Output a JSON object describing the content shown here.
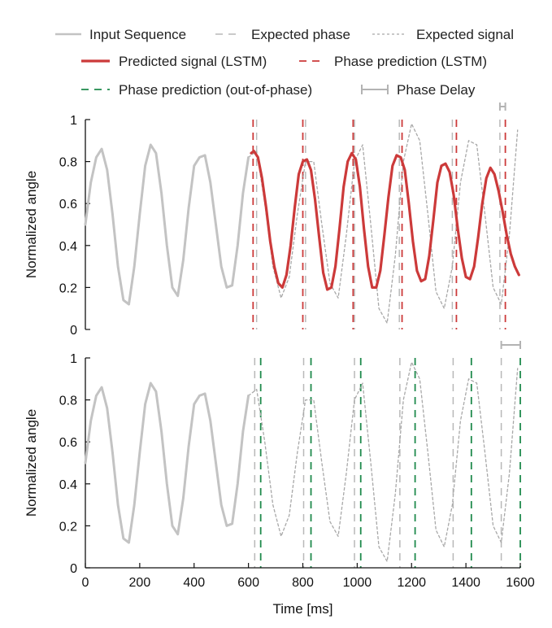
{
  "colors": {
    "input": "#c3c3c3",
    "expected_phase": "#b8b8b8",
    "expected_signal": "#a8a8a8",
    "predicted": "#cc3a3a",
    "phase_lstm": "#cc3a3a",
    "phase_oop": "#1f8a4c",
    "delay": "#b3b3b3",
    "axis": "#111111"
  },
  "legend": [
    {
      "label": "Input Sequence",
      "style": "input"
    },
    {
      "label": "Expected phase",
      "style": "expected_phase"
    },
    {
      "label": "Expected signal",
      "style": "expected_signal"
    },
    {
      "label": "Predicted signal (LSTM)",
      "style": "predicted"
    },
    {
      "label": "Phase prediction (LSTM)",
      "style": "phase_lstm"
    },
    {
      "label": "Phase prediction (out-of-phase)",
      "style": "phase_oop"
    },
    {
      "label": "Phase Delay",
      "style": "delay"
    }
  ],
  "chart_data": [
    {
      "type": "line",
      "panel": "top",
      "ylabel": "Normalized angle",
      "xlabel": "",
      "xlim": [
        0,
        1600
      ],
      "ylim": [
        0,
        1
      ],
      "y_ticks": [
        "0",
        "0.2",
        "0.4",
        "0.6",
        "0.8",
        "1"
      ],
      "x_ticks": [],
      "series": [
        {
          "name": "Input Sequence",
          "x": [
            0,
            20,
            40,
            60,
            80,
            100,
            120,
            140,
            160,
            180,
            200,
            220,
            240,
            260,
            280,
            300,
            320,
            340,
            360,
            380,
            400,
            420,
            440,
            460,
            480,
            500,
            520,
            540,
            560,
            580,
            600
          ],
          "y": [
            0.5,
            0.7,
            0.82,
            0.86,
            0.76,
            0.55,
            0.3,
            0.14,
            0.12,
            0.3,
            0.55,
            0.78,
            0.88,
            0.84,
            0.65,
            0.4,
            0.2,
            0.16,
            0.33,
            0.58,
            0.78,
            0.82,
            0.83,
            0.7,
            0.5,
            0.3,
            0.2,
            0.21,
            0.4,
            0.65,
            0.82
          ]
        },
        {
          "name": "Expected signal",
          "x": [
            600,
            630,
            660,
            690,
            720,
            750,
            780,
            810,
            840,
            870,
            900,
            930,
            960,
            990,
            1020,
            1050,
            1080,
            1110,
            1140,
            1170,
            1200,
            1230,
            1260,
            1290,
            1320,
            1350,
            1380,
            1410,
            1440,
            1470,
            1500,
            1530,
            1560,
            1590
          ],
          "y": [
            0.82,
            0.85,
            0.6,
            0.3,
            0.15,
            0.25,
            0.55,
            0.8,
            0.8,
            0.5,
            0.22,
            0.15,
            0.45,
            0.8,
            0.88,
            0.5,
            0.1,
            0.03,
            0.35,
            0.8,
            0.98,
            0.9,
            0.55,
            0.18,
            0.1,
            0.3,
            0.7,
            0.9,
            0.88,
            0.55,
            0.2,
            0.12,
            0.45,
            0.95
          ]
        },
        {
          "name": "Predicted signal (LSTM)",
          "x": [
            610,
            620,
            635,
            650,
            665,
            680,
            695,
            710,
            725,
            740,
            755,
            770,
            785,
            800,
            815,
            830,
            845,
            860,
            875,
            890,
            905,
            920,
            935,
            950,
            965,
            980,
            995,
            1010,
            1025,
            1040,
            1055,
            1070,
            1085,
            1100,
            1115,
            1130,
            1145,
            1160,
            1175,
            1190,
            1205,
            1220,
            1235,
            1250,
            1265,
            1280,
            1295,
            1310,
            1325,
            1340,
            1355,
            1370,
            1385,
            1400,
            1415,
            1430,
            1445,
            1460,
            1475,
            1490,
            1505,
            1520,
            1535,
            1550,
            1565,
            1580,
            1595
          ],
          "y": [
            0.84,
            0.85,
            0.82,
            0.72,
            0.58,
            0.42,
            0.3,
            0.22,
            0.2,
            0.26,
            0.4,
            0.58,
            0.74,
            0.8,
            0.81,
            0.76,
            0.62,
            0.44,
            0.27,
            0.19,
            0.2,
            0.3,
            0.48,
            0.68,
            0.8,
            0.84,
            0.81,
            0.68,
            0.48,
            0.3,
            0.2,
            0.2,
            0.28,
            0.45,
            0.63,
            0.78,
            0.83,
            0.82,
            0.76,
            0.6,
            0.42,
            0.28,
            0.23,
            0.24,
            0.35,
            0.52,
            0.7,
            0.78,
            0.79,
            0.75,
            0.64,
            0.48,
            0.34,
            0.25,
            0.24,
            0.3,
            0.44,
            0.6,
            0.72,
            0.77,
            0.74,
            0.66,
            0.56,
            0.45,
            0.36,
            0.3,
            0.26
          ]
        },
        {
          "name": "Phase prediction (LSTM)",
          "x": [
            617,
            800,
            985,
            1165,
            1365,
            1545
          ],
          "style": "vertical-lines"
        },
        {
          "name": "Expected phase",
          "x": [
            630,
            810,
            990,
            1155,
            1350,
            1525
          ],
          "style": "vertical-lines"
        }
      ],
      "annotation": {
        "name": "Phase Delay",
        "x": [
          1525,
          1545
        ]
      }
    },
    {
      "type": "line",
      "panel": "bottom",
      "ylabel": "Normalized angle",
      "xlabel": "Time [ms]",
      "xlim": [
        0,
        1600
      ],
      "ylim": [
        0,
        1
      ],
      "y_ticks": [
        "0",
        "0.2",
        "0.4",
        "0.6",
        "0.8",
        "1"
      ],
      "x_ticks": [
        "0",
        "200",
        "400",
        "600",
        "800",
        "1000",
        "1200",
        "1400",
        "1600"
      ],
      "series": [
        {
          "name": "Input Sequence",
          "x": [
            0,
            20,
            40,
            60,
            80,
            100,
            120,
            140,
            160,
            180,
            200,
            220,
            240,
            260,
            280,
            300,
            320,
            340,
            360,
            380,
            400,
            420,
            440,
            460,
            480,
            500,
            520,
            540,
            560,
            580,
            600
          ],
          "y": [
            0.5,
            0.7,
            0.82,
            0.86,
            0.76,
            0.55,
            0.3,
            0.14,
            0.12,
            0.3,
            0.55,
            0.78,
            0.88,
            0.84,
            0.65,
            0.4,
            0.2,
            0.16,
            0.33,
            0.58,
            0.78,
            0.82,
            0.83,
            0.7,
            0.5,
            0.3,
            0.2,
            0.21,
            0.4,
            0.65,
            0.82
          ]
        },
        {
          "name": "Expected signal",
          "x": [
            600,
            630,
            660,
            690,
            720,
            750,
            780,
            810,
            840,
            870,
            900,
            930,
            960,
            990,
            1020,
            1050,
            1080,
            1110,
            1140,
            1170,
            1200,
            1230,
            1260,
            1290,
            1320,
            1350,
            1380,
            1410,
            1440,
            1470,
            1500,
            1530,
            1560,
            1590
          ],
          "y": [
            0.82,
            0.85,
            0.6,
            0.3,
            0.15,
            0.25,
            0.55,
            0.8,
            0.8,
            0.5,
            0.22,
            0.15,
            0.45,
            0.8,
            0.88,
            0.5,
            0.1,
            0.03,
            0.35,
            0.8,
            0.98,
            0.9,
            0.55,
            0.18,
            0.1,
            0.3,
            0.7,
            0.9,
            0.88,
            0.55,
            0.2,
            0.12,
            0.45,
            0.95
          ]
        },
        {
          "name": "Expected phase",
          "x": [
            623,
            803,
            990,
            1157,
            1353,
            1530
          ],
          "style": "vertical-lines"
        },
        {
          "name": "Phase prediction (out-of-phase)",
          "x": [
            645,
            830,
            1013,
            1213,
            1420,
            1600
          ],
          "style": "vertical-lines"
        }
      ],
      "annotation": {
        "name": "Phase Delay",
        "x": [
          1530,
          1600
        ]
      }
    }
  ]
}
